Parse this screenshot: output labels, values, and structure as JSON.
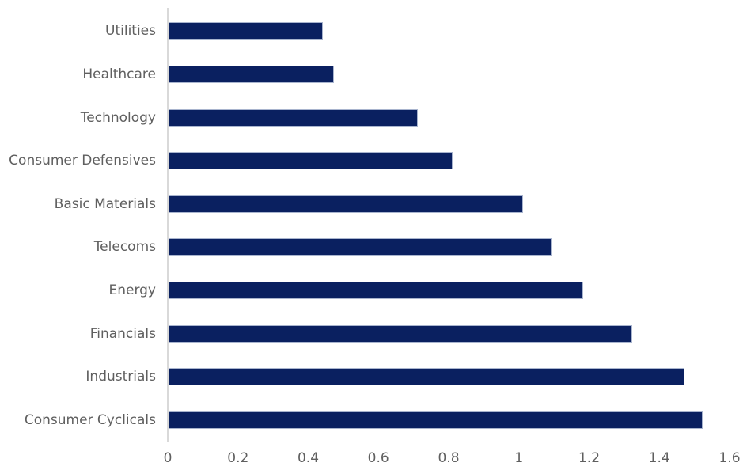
{
  "chart_data": {
    "type": "bar",
    "orientation": "horizontal",
    "title": "",
    "xlabel": "",
    "ylabel": "",
    "categories": [
      "Utilities",
      "Healthcare",
      "Technology",
      "Consumer Defensives",
      "Basic Materials",
      "Telecoms",
      "Energy",
      "Financials",
      "Industrials",
      "Consumer Cyclicals"
    ],
    "values": [
      0.44,
      0.47,
      0.71,
      0.81,
      1.01,
      1.09,
      1.18,
      1.32,
      1.47,
      1.52
    ],
    "xlim": [
      0,
      1.6
    ],
    "xtick_labels": [
      "0",
      "0.2",
      "0.4",
      "0.6",
      "0.8",
      "1",
      "1.2",
      "1.4",
      "1.6"
    ],
    "grid": false,
    "legend_position": "none",
    "colors": {
      "bar_fill": "#0a2060",
      "bar_border": "#a8b4ce",
      "axis_line": "#d9d9d9",
      "text": "#5f5f5f",
      "background": "#ffffff"
    }
  }
}
